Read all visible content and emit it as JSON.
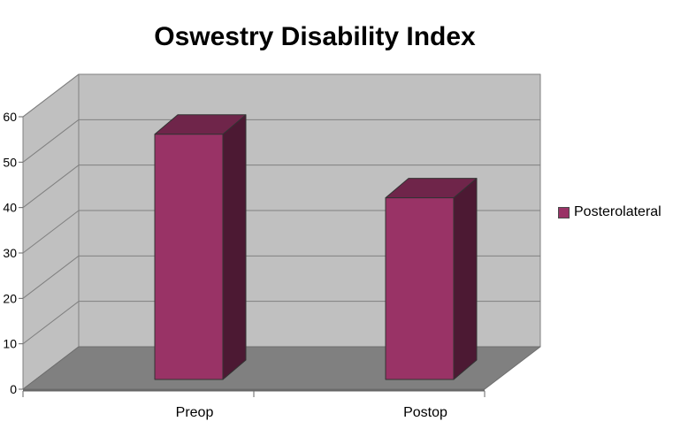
{
  "title": "Oswestry Disability Index",
  "chart_data": {
    "type": "bar",
    "style": "3d-column",
    "title": "Oswestry Disability Index",
    "categories": [
      "Preop",
      "Postop"
    ],
    "series": [
      {
        "name": "Posterolateral",
        "values": [
          54,
          40
        ]
      }
    ],
    "xlabel": "",
    "ylabel": "",
    "ylim": [
      0,
      60
    ],
    "yticks": [
      0,
      10,
      20,
      30,
      40,
      50,
      60
    ],
    "grid": true,
    "legend_position": "right",
    "colors": {
      "bar_front": "#993366",
      "bar_side": "#4C1933",
      "bar_top": "#6F254A",
      "bar_outline": "#333333",
      "wall": "#C0C0C0",
      "floor": "#808080",
      "gridline": "#808080",
      "axis_line": "#666666",
      "text": "#000000",
      "background": "#FFFFFF"
    }
  }
}
